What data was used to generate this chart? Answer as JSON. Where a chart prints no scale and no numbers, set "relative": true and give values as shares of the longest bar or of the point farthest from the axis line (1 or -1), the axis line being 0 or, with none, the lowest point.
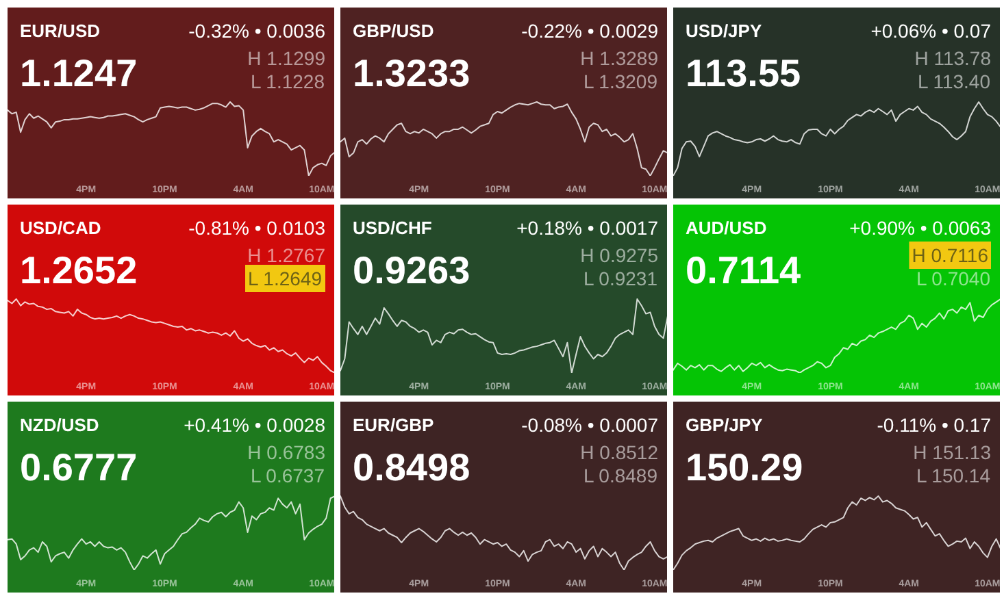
{
  "chart_data": [
    {
      "type": "line",
      "title": "EUR/USD",
      "subtitle": "1.1247",
      "annotations": [
        "-0.32% • 0.0036",
        "H 1.1299",
        "L 1.1228"
      ],
      "relative": true,
      "categories": [
        null,
        null,
        null,
        null,
        null,
        null,
        null,
        null,
        null,
        null,
        null,
        null,
        null,
        null,
        null,
        null,
        null,
        null,
        "4PM",
        null,
        null,
        null,
        null,
        null,
        null,
        null,
        null,
        null,
        null,
        null,
        null,
        null,
        null,
        null,
        null,
        null,
        "10PM",
        null,
        null,
        null,
        null,
        null,
        null,
        null,
        null,
        null,
        null,
        null,
        null,
        null,
        null,
        null,
        null,
        null,
        "4AM",
        null,
        null,
        null,
        null,
        null,
        null,
        null,
        null,
        null,
        null,
        null,
        null,
        null,
        null,
        null,
        null,
        null,
        "10AM",
        null,
        null,
        null
      ],
      "series": [
        {
          "color": "#e0d2d2",
          "values": [
            0.89,
            0.84,
            0.86,
            0.59,
            0.76,
            0.84,
            0.78,
            0.81,
            0.77,
            0.73,
            0.65,
            0.73,
            0.74,
            0.76,
            0.76,
            0.77,
            0.77,
            0.78,
            0.79,
            0.8,
            0.79,
            0.78,
            0.79,
            0.81,
            0.81,
            0.82,
            0.83,
            0.84,
            0.82,
            0.8,
            0.76,
            0.73,
            0.76,
            0.78,
            0.8,
            0.92,
            0.93,
            0.94,
            0.93,
            0.92,
            0.93,
            0.93,
            0.91,
            0.89,
            0.9,
            0.92,
            0.95,
            0.98,
            0.98,
            0.96,
            0.93,
            1.0,
            0.94,
            0.95,
            0.89,
            0.38,
            0.54,
            0.6,
            0.64,
            0.6,
            0.57,
            0.46,
            0.49,
            0.46,
            0.43,
            0.35,
            0.38,
            0.41,
            0.35,
            0.0,
            0.11,
            0.15,
            0.17,
            0.14,
            0.27,
            0.32
          ]
        }
      ],
      "tick_labels": "x"
    },
    {
      "type": "line",
      "title": "GBP/USD",
      "subtitle": "1.3233",
      "annotations": [
        "-0.22% • 0.0029",
        "H 1.3289",
        "L 1.3209"
      ],
      "relative": true,
      "categories": [
        null,
        null,
        null,
        null,
        null,
        null,
        null,
        null,
        null,
        null,
        null,
        null,
        null,
        null,
        null,
        null,
        null,
        null,
        "4PM",
        null,
        null,
        null,
        null,
        null,
        null,
        null,
        null,
        null,
        null,
        null,
        null,
        null,
        null,
        null,
        null,
        null,
        "10PM",
        null,
        null,
        null,
        null,
        null,
        null,
        null,
        null,
        null,
        null,
        null,
        null,
        null,
        null,
        null,
        null,
        null,
        "4AM",
        null,
        null,
        null,
        null,
        null,
        null,
        null,
        null,
        null,
        null,
        null,
        null,
        null,
        null,
        null,
        null,
        null,
        "10AM",
        null,
        null,
        null
      ],
      "series": [
        {
          "color": "#dcd3d3",
          "values": [
            0.46,
            0.51,
            0.26,
            0.31,
            0.46,
            0.49,
            0.43,
            0.5,
            0.54,
            0.51,
            0.46,
            0.57,
            0.63,
            0.69,
            0.71,
            0.6,
            0.57,
            0.6,
            0.58,
            0.63,
            0.6,
            0.57,
            0.51,
            0.57,
            0.6,
            0.6,
            0.63,
            0.63,
            0.66,
            0.62,
            0.58,
            0.62,
            0.67,
            0.69,
            0.71,
            0.83,
            0.87,
            0.85,
            0.89,
            0.93,
            0.96,
            0.98,
            0.97,
            0.96,
            0.98,
            1.0,
            0.97,
            0.96,
            0.96,
            0.91,
            0.93,
            0.94,
            0.97,
            0.86,
            0.77,
            0.63,
            0.46,
            0.66,
            0.71,
            0.69,
            0.6,
            0.63,
            0.54,
            0.57,
            0.52,
            0.46,
            0.49,
            0.57,
            0.37,
            0.11,
            0.09,
            0.0,
            0.11,
            0.23,
            0.34,
            0.31
          ]
        }
      ],
      "tick_labels": "x"
    },
    {
      "type": "line",
      "title": "USD/JPY",
      "subtitle": "113.55",
      "annotations": [
        "+0.06% • 0.07",
        "H 113.78",
        "L 113.40"
      ],
      "relative": true,
      "categories": [
        null,
        null,
        null,
        null,
        null,
        null,
        null,
        null,
        null,
        null,
        null,
        null,
        null,
        null,
        null,
        null,
        null,
        null,
        "4PM",
        null,
        null,
        null,
        null,
        null,
        null,
        null,
        null,
        null,
        null,
        null,
        null,
        null,
        null,
        null,
        null,
        null,
        "10PM",
        null,
        null,
        null,
        null,
        null,
        null,
        null,
        null,
        null,
        null,
        null,
        null,
        null,
        null,
        null,
        null,
        null,
        "4AM",
        null,
        null,
        null,
        null,
        null,
        null,
        null,
        null,
        null,
        null,
        null,
        null,
        null,
        null,
        null,
        null,
        null,
        "10AM",
        null,
        null,
        null
      ],
      "series": [
        {
          "color": "#d4d6d4",
          "values": [
            0.0,
            0.11,
            0.37,
            0.46,
            0.47,
            0.4,
            0.26,
            0.4,
            0.54,
            0.58,
            0.6,
            0.57,
            0.54,
            0.52,
            0.49,
            0.48,
            0.46,
            0.45,
            0.46,
            0.49,
            0.5,
            0.47,
            0.5,
            0.54,
            0.49,
            0.47,
            0.46,
            0.49,
            0.45,
            0.43,
            0.57,
            0.62,
            0.63,
            0.63,
            0.57,
            0.54,
            0.63,
            0.57,
            0.63,
            0.67,
            0.75,
            0.79,
            0.83,
            0.81,
            0.86,
            0.89,
            0.86,
            0.91,
            0.87,
            0.83,
            0.89,
            0.74,
            0.83,
            0.87,
            0.91,
            0.89,
            0.94,
            0.86,
            0.83,
            0.77,
            0.74,
            0.71,
            0.66,
            0.6,
            0.53,
            0.49,
            0.54,
            0.6,
            0.8,
            0.91,
            1.0,
            0.91,
            0.83,
            0.8,
            0.74,
            0.66
          ]
        }
      ],
      "tick_labels": "x"
    },
    {
      "type": "line",
      "title": "USD/CAD",
      "subtitle": "1.2652",
      "annotations": [
        "-0.81% • 0.0103",
        "H 1.2767",
        "L 1.2649"
      ],
      "relative": true,
      "categories": [
        null,
        null,
        null,
        null,
        null,
        null,
        null,
        null,
        null,
        null,
        null,
        null,
        null,
        null,
        null,
        null,
        null,
        null,
        "4PM",
        null,
        null,
        null,
        null,
        null,
        null,
        null,
        null,
        null,
        null,
        null,
        null,
        null,
        null,
        null,
        null,
        null,
        "10PM",
        null,
        null,
        null,
        null,
        null,
        null,
        null,
        null,
        null,
        null,
        null,
        null,
        null,
        null,
        null,
        null,
        null,
        "4AM",
        null,
        null,
        null,
        null,
        null,
        null,
        null,
        null,
        null,
        null,
        null,
        null,
        null,
        null,
        null,
        null,
        null,
        "10AM",
        null,
        null,
        null
      ],
      "series": [
        {
          "color": "#f6cece",
          "values": [
            0.98,
            0.94,
            1.0,
            0.91,
            0.96,
            0.93,
            0.94,
            0.9,
            0.89,
            0.86,
            0.87,
            0.83,
            0.82,
            0.81,
            0.83,
            0.77,
            0.86,
            0.81,
            0.79,
            0.75,
            0.73,
            0.74,
            0.73,
            0.74,
            0.75,
            0.77,
            0.74,
            0.77,
            0.79,
            0.77,
            0.74,
            0.73,
            0.71,
            0.69,
            0.68,
            0.69,
            0.67,
            0.65,
            0.63,
            0.62,
            0.63,
            0.58,
            0.6,
            0.57,
            0.58,
            0.56,
            0.54,
            0.55,
            0.54,
            0.51,
            0.54,
            0.5,
            0.57,
            0.47,
            0.43,
            0.46,
            0.4,
            0.37,
            0.35,
            0.37,
            0.31,
            0.34,
            0.29,
            0.31,
            0.26,
            0.23,
            0.27,
            0.2,
            0.14,
            0.2,
            0.17,
            0.22,
            0.14,
            0.09,
            0.03,
            0.0
          ]
        }
      ],
      "tick_labels": "x"
    },
    {
      "type": "line",
      "title": "USD/CHF",
      "subtitle": "0.9263",
      "annotations": [
        "+0.18% • 0.0017",
        "H 0.9275",
        "L 0.9231"
      ],
      "relative": true,
      "categories": [
        null,
        null,
        null,
        null,
        null,
        null,
        null,
        null,
        null,
        null,
        null,
        null,
        null,
        null,
        null,
        null,
        null,
        null,
        "4PM",
        null,
        null,
        null,
        null,
        null,
        null,
        null,
        null,
        null,
        null,
        null,
        null,
        null,
        null,
        null,
        null,
        null,
        "10PM",
        null,
        null,
        null,
        null,
        null,
        null,
        null,
        null,
        null,
        null,
        null,
        null,
        null,
        null,
        null,
        null,
        null,
        "4AM",
        null,
        null,
        null,
        null,
        null,
        null,
        null,
        null,
        null,
        null,
        null,
        null,
        null,
        null,
        null,
        null,
        null,
        "10AM",
        null,
        null,
        null
      ],
      "series": [
        {
          "color": "#d3dbd4",
          "values": [
            0.03,
            0.19,
            0.69,
            0.6,
            0.52,
            0.63,
            0.52,
            0.63,
            0.74,
            0.66,
            0.88,
            0.8,
            0.71,
            0.63,
            0.71,
            0.69,
            0.63,
            0.6,
            0.55,
            0.58,
            0.55,
            0.38,
            0.44,
            0.41,
            0.52,
            0.55,
            0.53,
            0.58,
            0.59,
            0.55,
            0.52,
            0.53,
            0.49,
            0.45,
            0.42,
            0.41,
            0.27,
            0.25,
            0.26,
            0.25,
            0.27,
            0.3,
            0.31,
            0.33,
            0.35,
            0.36,
            0.38,
            0.4,
            0.41,
            0.44,
            0.33,
            0.22,
            0.41,
            0.0,
            0.25,
            0.49,
            0.36,
            0.27,
            0.19,
            0.25,
            0.22,
            0.27,
            0.36,
            0.47,
            0.52,
            0.55,
            0.58,
            0.52,
            1.0,
            0.91,
            0.8,
            0.82,
            0.63,
            0.52,
            0.47,
            0.77
          ]
        }
      ],
      "tick_labels": "x"
    },
    {
      "type": "line",
      "title": "AUD/USD",
      "subtitle": "0.7114",
      "annotations": [
        "+0.90% • 0.0063",
        "H 0.7116",
        "L 0.7040"
      ],
      "relative": true,
      "categories": [
        null,
        null,
        null,
        null,
        null,
        null,
        null,
        null,
        null,
        null,
        null,
        null,
        null,
        null,
        null,
        null,
        null,
        null,
        "4PM",
        null,
        null,
        null,
        null,
        null,
        null,
        null,
        null,
        null,
        null,
        null,
        null,
        null,
        null,
        null,
        null,
        null,
        "10PM",
        null,
        null,
        null,
        null,
        null,
        null,
        null,
        null,
        null,
        null,
        null,
        null,
        null,
        null,
        null,
        null,
        null,
        "4AM",
        null,
        null,
        null,
        null,
        null,
        null,
        null,
        null,
        null,
        null,
        null,
        null,
        null,
        null,
        null,
        null,
        null,
        "10AM",
        null,
        null,
        null
      ],
      "series": [
        {
          "color": "#cdf3cd",
          "values": [
            0.04,
            0.13,
            0.09,
            0.04,
            0.1,
            0.07,
            0.11,
            0.04,
            0.1,
            0.1,
            0.05,
            0.02,
            0.07,
            0.11,
            0.04,
            0.1,
            0.02,
            0.07,
            0.13,
            0.1,
            0.14,
            0.07,
            0.11,
            0.07,
            0.04,
            0.03,
            0.05,
            0.04,
            0.03,
            0.0,
            0.04,
            0.07,
            0.1,
            0.15,
            0.13,
            0.07,
            0.1,
            0.21,
            0.26,
            0.34,
            0.32,
            0.4,
            0.37,
            0.43,
            0.45,
            0.51,
            0.48,
            0.54,
            0.56,
            0.59,
            0.62,
            0.59,
            0.67,
            0.7,
            0.78,
            0.74,
            0.59,
            0.67,
            0.62,
            0.7,
            0.74,
            0.81,
            0.73,
            0.84,
            0.86,
            0.81,
            0.89,
            0.86,
            0.95,
            0.7,
            0.78,
            0.75,
            0.86,
            0.92,
            0.96,
            1.0
          ]
        }
      ],
      "tick_labels": "x"
    },
    {
      "type": "line",
      "title": "NZD/USD",
      "subtitle": "0.6777",
      "annotations": [
        "+0.41% • 0.0028",
        "H 0.6783",
        "L 0.6737"
      ],
      "relative": true,
      "categories": [
        null,
        null,
        null,
        null,
        null,
        null,
        null,
        null,
        null,
        null,
        null,
        null,
        null,
        null,
        null,
        null,
        null,
        null,
        "4PM",
        null,
        null,
        null,
        null,
        null,
        null,
        null,
        null,
        null,
        null,
        null,
        null,
        null,
        null,
        null,
        null,
        null,
        "10PM",
        null,
        null,
        null,
        null,
        null,
        null,
        null,
        null,
        null,
        null,
        null,
        null,
        null,
        null,
        null,
        null,
        null,
        "4AM",
        null,
        null,
        null,
        null,
        null,
        null,
        null,
        null,
        null,
        null,
        null,
        null,
        null,
        null,
        null,
        null,
        null,
        "10AM",
        null,
        null,
        null
      ],
      "series": [
        {
          "color": "#d2e4d2",
          "values": [
            0.41,
            0.42,
            0.35,
            0.14,
            0.19,
            0.27,
            0.3,
            0.24,
            0.38,
            0.32,
            0.11,
            0.19,
            0.22,
            0.24,
            0.16,
            0.27,
            0.35,
            0.42,
            0.35,
            0.38,
            0.32,
            0.38,
            0.32,
            0.3,
            0.31,
            0.27,
            0.3,
            0.24,
            0.11,
            0.0,
            0.08,
            0.19,
            0.16,
            0.22,
            0.27,
            0.08,
            0.22,
            0.27,
            0.32,
            0.41,
            0.49,
            0.51,
            0.57,
            0.62,
            0.7,
            0.67,
            0.65,
            0.72,
            0.76,
            0.78,
            0.72,
            0.78,
            0.81,
            0.92,
            0.84,
            0.51,
            0.73,
            0.68,
            0.76,
            0.78,
            0.84,
            0.81,
            0.97,
            0.89,
            0.84,
            0.92,
            0.76,
            0.89,
            0.41,
            0.5,
            0.55,
            0.59,
            0.62,
            0.7,
            0.97,
            1.0
          ]
        }
      ],
      "tick_labels": "x"
    },
    {
      "type": "line",
      "title": "EUR/GBP",
      "subtitle": "0.8498",
      "annotations": [
        "-0.08% • 0.0007",
        "H 0.8512",
        "L 0.8489"
      ],
      "relative": true,
      "categories": [
        null,
        null,
        null,
        null,
        null,
        null,
        null,
        null,
        null,
        null,
        null,
        null,
        null,
        null,
        null,
        null,
        null,
        null,
        "4PM",
        null,
        null,
        null,
        null,
        null,
        null,
        null,
        null,
        null,
        null,
        null,
        null,
        null,
        null,
        null,
        null,
        null,
        "10PM",
        null,
        null,
        null,
        null,
        null,
        null,
        null,
        null,
        null,
        null,
        null,
        null,
        null,
        null,
        null,
        null,
        null,
        "4AM",
        null,
        null,
        null,
        null,
        null,
        null,
        null,
        null,
        null,
        null,
        null,
        null,
        null,
        null,
        null,
        null,
        null,
        "10AM",
        null,
        null,
        null
      ],
      "series": [
        {
          "color": "#d8d3d3",
          "values": [
            1.0,
            0.85,
            0.76,
            0.79,
            0.71,
            0.68,
            0.62,
            0.59,
            0.56,
            0.53,
            0.56,
            0.5,
            0.47,
            0.44,
            0.37,
            0.44,
            0.5,
            0.53,
            0.56,
            0.52,
            0.47,
            0.42,
            0.38,
            0.44,
            0.53,
            0.56,
            0.51,
            0.47,
            0.51,
            0.47,
            0.5,
            0.44,
            0.35,
            0.41,
            0.38,
            0.35,
            0.37,
            0.32,
            0.35,
            0.27,
            0.24,
            0.18,
            0.26,
            0.12,
            0.21,
            0.24,
            0.26,
            0.38,
            0.41,
            0.32,
            0.35,
            0.29,
            0.38,
            0.35,
            0.24,
            0.29,
            0.15,
            0.26,
            0.32,
            0.18,
            0.29,
            0.24,
            0.18,
            0.24,
            0.09,
            0.0,
            0.12,
            0.17,
            0.21,
            0.24,
            0.32,
            0.38,
            0.26,
            0.18,
            0.15,
            0.18
          ]
        }
      ],
      "tick_labels": "x"
    },
    {
      "type": "line",
      "title": "GBP/JPY",
      "subtitle": "150.29",
      "annotations": [
        "-0.11% • 0.17",
        "H 151.13",
        "L 150.14"
      ],
      "relative": true,
      "categories": [
        null,
        null,
        null,
        null,
        null,
        null,
        null,
        null,
        null,
        null,
        null,
        null,
        null,
        null,
        null,
        null,
        null,
        null,
        "4PM",
        null,
        null,
        null,
        null,
        null,
        null,
        null,
        null,
        null,
        null,
        null,
        null,
        null,
        null,
        null,
        null,
        null,
        "10PM",
        null,
        null,
        null,
        null,
        null,
        null,
        null,
        null,
        null,
        null,
        null,
        null,
        null,
        null,
        null,
        null,
        null,
        "4AM",
        null,
        null,
        null,
        null,
        null,
        null,
        null,
        null,
        null,
        null,
        null,
        null,
        null,
        null,
        null,
        null,
        null,
        "10AM",
        null,
        null,
        null
      ],
      "series": [
        {
          "color": "#d8d3d3",
          "values": [
            0.0,
            0.09,
            0.2,
            0.26,
            0.3,
            0.35,
            0.37,
            0.39,
            0.4,
            0.38,
            0.43,
            0.46,
            0.49,
            0.52,
            0.54,
            0.56,
            0.46,
            0.43,
            0.4,
            0.42,
            0.39,
            0.43,
            0.4,
            0.42,
            0.39,
            0.4,
            0.42,
            0.4,
            0.39,
            0.38,
            0.42,
            0.49,
            0.55,
            0.58,
            0.61,
            0.58,
            0.64,
            0.65,
            0.68,
            0.71,
            0.84,
            0.92,
            0.88,
            0.97,
            0.94,
            0.98,
            0.95,
            1.0,
            0.92,
            0.94,
            0.9,
            0.84,
            0.82,
            0.8,
            0.75,
            0.69,
            0.71,
            0.58,
            0.64,
            0.55,
            0.46,
            0.49,
            0.4,
            0.32,
            0.35,
            0.39,
            0.38,
            0.43,
            0.29,
            0.38,
            0.32,
            0.23,
            0.17,
            0.32,
            0.42,
            0.29
          ]
        }
      ],
      "tick_labels": "x"
    }
  ]
}
